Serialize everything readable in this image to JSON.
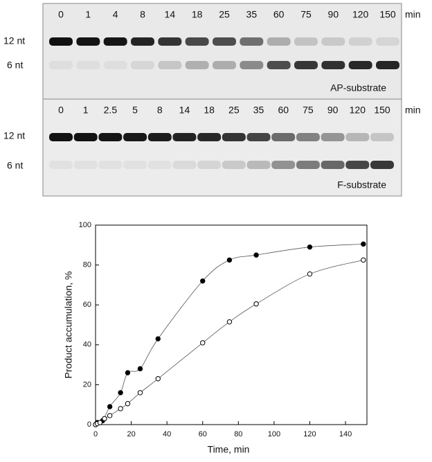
{
  "gel": {
    "top": {
      "lanes": [
        "0",
        "1",
        "4",
        "8",
        "14",
        "18",
        "25",
        "35",
        "60",
        "75",
        "90",
        "120",
        "150"
      ],
      "unit": "min",
      "bands": [
        "12 nt",
        "6 nt"
      ],
      "label": "AP-substrate"
    },
    "bottom": {
      "lanes": [
        "0",
        "1",
        "2.5",
        "5",
        "8",
        "14",
        "18",
        "25",
        "35",
        "60",
        "75",
        "90",
        "120",
        "150"
      ],
      "unit": "min",
      "bands": [
        "12 nt",
        "6 nt"
      ],
      "label": "F-substrate"
    }
  },
  "chart_data": {
    "type": "scatter",
    "x_label": "Time, min",
    "y_label": "Product accumulation, %",
    "xlim": [
      0,
      152
    ],
    "ylim": [
      0,
      100
    ],
    "xticks": [
      0,
      20,
      40,
      60,
      80,
      100,
      120,
      140
    ],
    "yticks": [
      0,
      20,
      40,
      60,
      80,
      100
    ],
    "series": [
      {
        "marker": "filled",
        "color": "#000000",
        "x": [
          0,
          1,
          4,
          8,
          14,
          18,
          25,
          35,
          60,
          75,
          90,
          120,
          150
        ],
        "values": [
          0,
          1,
          2,
          9,
          16,
          26,
          28,
          43,
          72,
          82.5,
          85,
          89,
          90.5
        ]
      },
      {
        "marker": "open",
        "color": "#000000",
        "x": [
          0,
          1,
          2.5,
          5,
          8,
          14,
          18,
          25,
          35,
          60,
          75,
          90,
          120,
          150
        ],
        "values": [
          0,
          0.5,
          1,
          3,
          4.5,
          8,
          10.5,
          16,
          23,
          41,
          51.5,
          60.5,
          75.5,
          82.5
        ]
      }
    ]
  }
}
